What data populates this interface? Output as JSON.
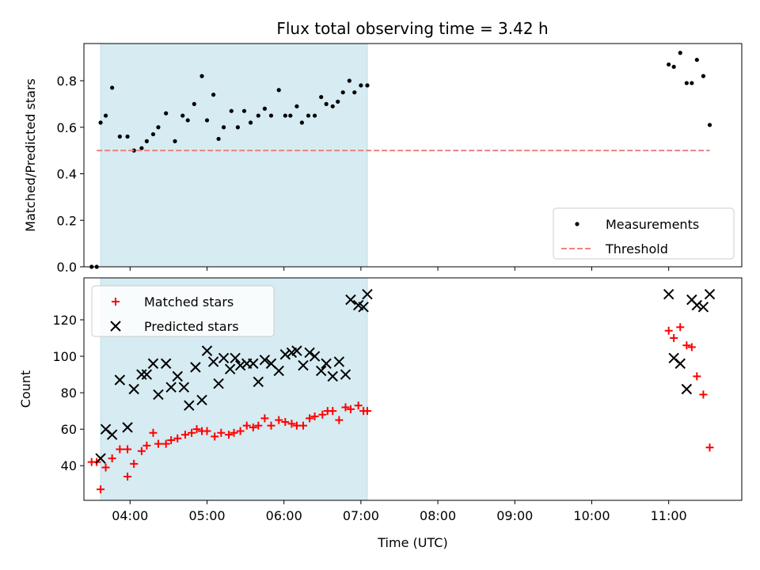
{
  "chart_data": [
    {
      "type": "scatter",
      "title": "Flux total observing time = 3.42 h",
      "xlabel": "",
      "ylabel": "Matched/Predicted stars",
      "xlim": [
        "03:24",
        "11:57"
      ],
      "ylim": [
        0,
        0.96
      ],
      "yticks": [
        0.0,
        0.2,
        0.4,
        0.6,
        0.8
      ],
      "ytick_labels": [
        "0.0",
        "0.2",
        "0.4",
        "0.6",
        "0.8"
      ],
      "shaded_span": [
        "03:37",
        "07:05"
      ],
      "shaded_color": "#add8e6",
      "legend_position": "lower right",
      "series": [
        {
          "name": "Measurements",
          "kind": "scatter",
          "color": "#000000",
          "x": [
            "03:30",
            "03:34",
            "03:37",
            "03:41",
            "03:46",
            "03:52",
            "03:58",
            "04:03",
            "04:09",
            "04:13",
            "04:18",
            "04:22",
            "04:28",
            "04:35",
            "04:41",
            "04:45",
            "04:50",
            "04:56",
            "05:00",
            "05:05",
            "05:09",
            "05:13",
            "05:19",
            "05:24",
            "05:29",
            "05:34",
            "05:40",
            "05:45",
            "05:50",
            "05:56",
            "06:01",
            "06:05",
            "06:10",
            "06:14",
            "06:19",
            "06:24",
            "06:29",
            "06:33",
            "06:38",
            "06:42",
            "06:46",
            "06:51",
            "06:55",
            "07:00",
            "07:05",
            "11:00",
            "11:04",
            "11:09",
            "11:14",
            "11:18",
            "11:22",
            "11:27",
            "11:32"
          ],
          "y": [
            0.0,
            0.0,
            0.62,
            0.65,
            0.77,
            0.56,
            0.56,
            0.5,
            0.51,
            0.54,
            0.57,
            0.6,
            0.66,
            0.54,
            0.65,
            0.63,
            0.7,
            0.82,
            0.63,
            0.74,
            0.55,
            0.6,
            0.67,
            0.6,
            0.67,
            0.62,
            0.65,
            0.68,
            0.65,
            0.76,
            0.65,
            0.65,
            0.69,
            0.62,
            0.65,
            0.65,
            0.73,
            0.7,
            0.69,
            0.71,
            0.75,
            0.8,
            0.75,
            0.78,
            0.78,
            0.87,
            0.86,
            0.92,
            0.79,
            0.79,
            0.89,
            0.82,
            0.61
          ]
        },
        {
          "name": "Threshold",
          "kind": "line",
          "style": "dashed",
          "color": "#f08080",
          "x": [
            "03:34",
            "11:32"
          ],
          "y": [
            0.5,
            0.5
          ]
        }
      ]
    },
    {
      "type": "scatter",
      "title": "",
      "xlabel": "Time (UTC)",
      "ylabel": "Count",
      "xlim": [
        "03:24",
        "11:57"
      ],
      "ylim": [
        21,
        143
      ],
      "yticks": [
        40,
        60,
        80,
        100,
        120
      ],
      "ytick_labels": [
        "40",
        "60",
        "80",
        "100",
        "120"
      ],
      "xticks": [
        "04:00",
        "05:00",
        "06:00",
        "07:00",
        "08:00",
        "09:00",
        "10:00",
        "11:00"
      ],
      "xtick_labels": [
        "04:00",
        "05:00",
        "06:00",
        "07:00",
        "08:00",
        "09:00",
        "10:00",
        "11:00"
      ],
      "shaded_span": [
        "03:37",
        "07:05"
      ],
      "shaded_color": "#add8e6",
      "legend_position": "upper left",
      "series": [
        {
          "name": "Matched stars",
          "marker": "plus",
          "color": "#ff0000",
          "x": [
            "03:30",
            "03:34",
            "03:37",
            "03:41",
            "03:46",
            "03:52",
            "03:58",
            "04:03",
            "03:58",
            "04:09",
            "04:13",
            "04:18",
            "04:22",
            "04:28",
            "04:32",
            "04:37",
            "04:43",
            "04:48",
            "04:52",
            "04:56",
            "05:00",
            "05:06",
            "05:11",
            "05:17",
            "05:21",
            "05:26",
            "05:31",
            "05:36",
            "05:40",
            "05:45",
            "05:50",
            "05:56",
            "06:01",
            "06:06",
            "06:10",
            "06:15",
            "06:20",
            "06:24",
            "06:30",
            "06:34",
            "06:38",
            "06:43",
            "06:48",
            "06:52",
            "06:58",
            "07:02",
            "07:05",
            "11:00",
            "11:04",
            "11:09",
            "11:14",
            "11:18",
            "11:22",
            "11:27",
            "11:32"
          ],
          "y": [
            42,
            42,
            27,
            39,
            44,
            49,
            34,
            41,
            49,
            48,
            51,
            58,
            52,
            52,
            54,
            55,
            57,
            58,
            60,
            59,
            59,
            56,
            58,
            57,
            58,
            59,
            62,
            61,
            62,
            66,
            62,
            65,
            64,
            63,
            62,
            62,
            66,
            67,
            68,
            70,
            70,
            65,
            72,
            71,
            73,
            70,
            70,
            114,
            110,
            116,
            106,
            105,
            89,
            79,
            50
          ]
        },
        {
          "name": "Predicted stars",
          "marker": "x",
          "color": "#000000",
          "x": [
            "03:37",
            "03:41",
            "03:46",
            "03:52",
            "03:58",
            "04:03",
            "04:09",
            "04:13",
            "04:18",
            "04:22",
            "04:28",
            "04:32",
            "04:37",
            "04:42",
            "04:46",
            "04:51",
            "04:56",
            "05:00",
            "05:05",
            "05:09",
            "05:13",
            "05:18",
            "05:22",
            "05:26",
            "05:31",
            "05:36",
            "05:40",
            "05:45",
            "05:50",
            "05:56",
            "06:01",
            "06:06",
            "06:10",
            "06:15",
            "06:20",
            "06:24",
            "06:29",
            "06:33",
            "06:38",
            "06:43",
            "06:48",
            "06:52",
            "06:58",
            "07:02",
            "07:05",
            "11:00",
            "11:04",
            "11:09",
            "11:14",
            "11:18",
            "11:22",
            "11:27",
            "11:32"
          ],
          "y": [
            44,
            60,
            57,
            87,
            61,
            82,
            90,
            90,
            96,
            79,
            96,
            83,
            89,
            83,
            73,
            94,
            76,
            103,
            97,
            85,
            99,
            93,
            99,
            95,
            96,
            96,
            86,
            98,
            96,
            92,
            101,
            102,
            103,
            95,
            102,
            100,
            92,
            96,
            89,
            97,
            90,
            131,
            128,
            127,
            134,
            134,
            99,
            96,
            82,
            131,
            128,
            127,
            134
          ]
        }
      ]
    }
  ]
}
